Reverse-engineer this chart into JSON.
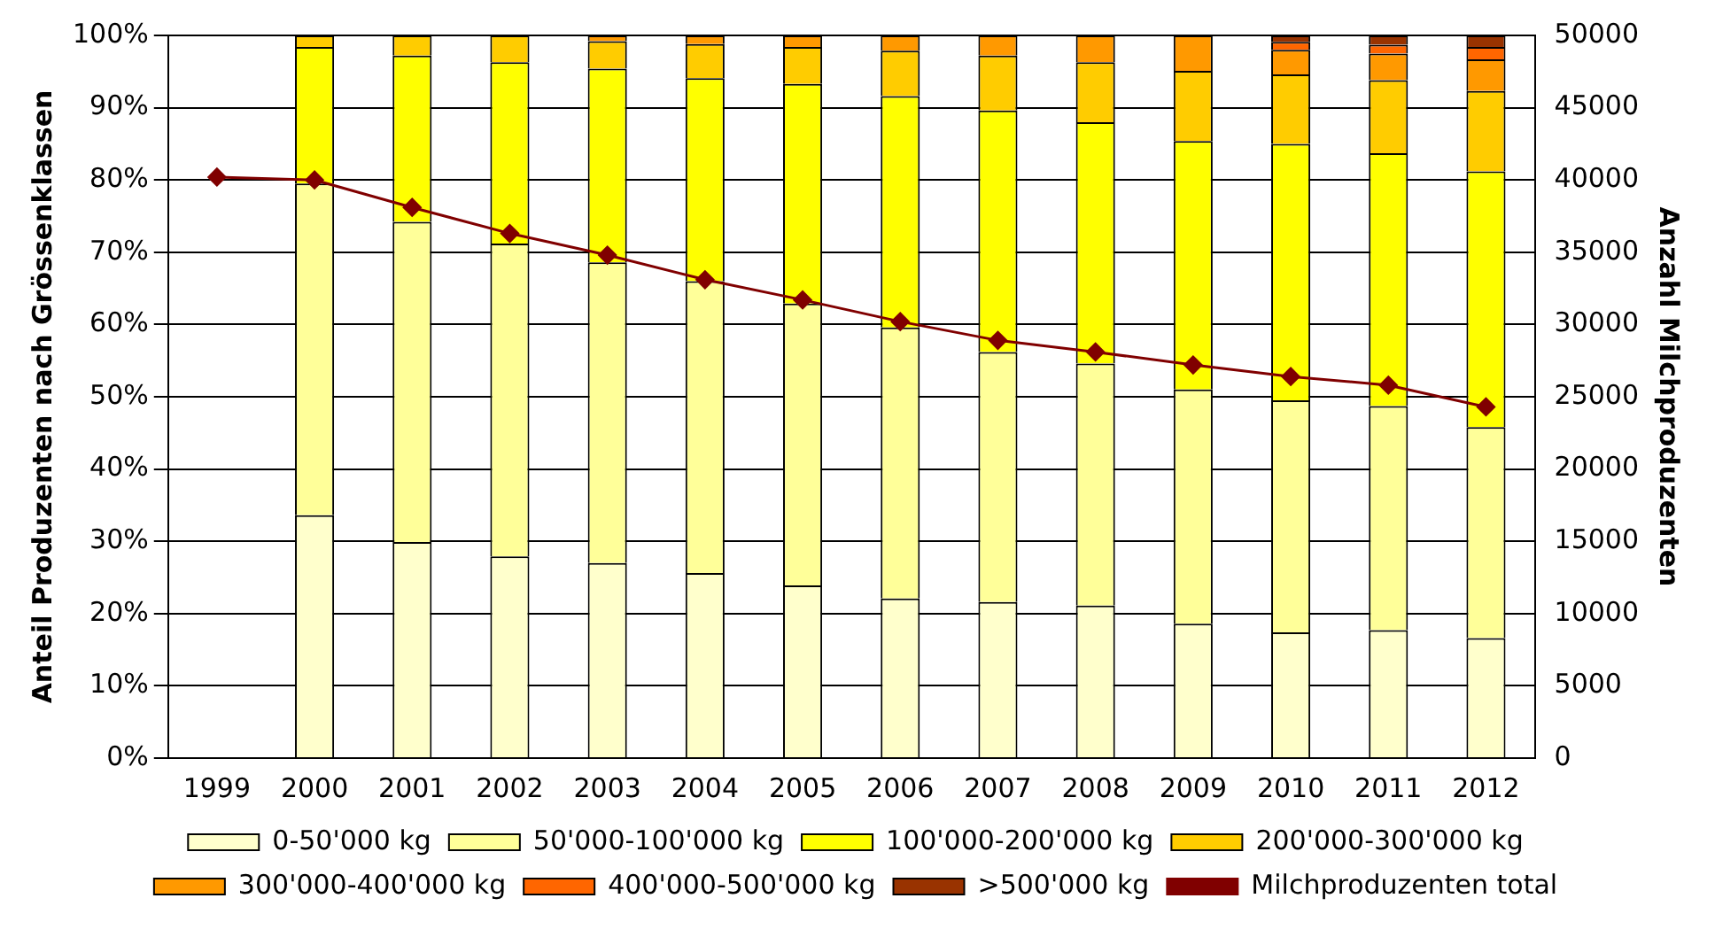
{
  "chart_data": {
    "type": "bar",
    "stacked": true,
    "categories": [
      "1999",
      "2000",
      "2001",
      "2002",
      "2003",
      "2004",
      "2005",
      "2006",
      "2007",
      "2008",
      "2009",
      "2010",
      "2011",
      "2012"
    ],
    "ylabel": "Anteil Produzenten nach Grössenklassen",
    "y2label": "Anzahl Milchproduzenten",
    "ylim": [
      0,
      100
    ],
    "yticks": [
      {
        "value": 0,
        "label": "0%"
      },
      {
        "value": 10,
        "label": "10%"
      },
      {
        "value": 20,
        "label": "20%"
      },
      {
        "value": 30,
        "label": "30%"
      },
      {
        "value": 40,
        "label": "40%"
      },
      {
        "value": 50,
        "label": "50%"
      },
      {
        "value": 60,
        "label": "60%"
      },
      {
        "value": 70,
        "label": "70%"
      },
      {
        "value": 80,
        "label": "80%"
      },
      {
        "value": 90,
        "label": "90%"
      },
      {
        "value": 100,
        "label": "100%"
      }
    ],
    "y2lim": [
      0,
      50000
    ],
    "y2ticks": [
      0,
      5000,
      10000,
      15000,
      20000,
      25000,
      30000,
      35000,
      40000,
      45000,
      50000
    ],
    "grid": "y",
    "legend": "bottom",
    "series": [
      {
        "name": "0-50'000 kg",
        "color": "#ffffcc",
        "values": [
          null,
          33.6,
          29.9,
          27.9,
          27.0,
          25.6,
          23.9,
          22.1,
          21.6,
          21.1,
          18.6,
          17.4,
          17.7,
          16.6
        ]
      },
      {
        "name": "50'000-100'000 kg",
        "color": "#ffff99",
        "values": [
          null,
          45.9,
          44.3,
          43.3,
          41.6,
          40.4,
          39.0,
          37.5,
          34.6,
          33.5,
          32.4,
          32.1,
          31.0,
          29.2
        ]
      },
      {
        "name": "100'000-200'000 kg",
        "color": "#ffff00",
        "values": [
          null,
          18.9,
          23.0,
          25.1,
          26.8,
          28.1,
          30.4,
          32.0,
          33.4,
          33.4,
          34.4,
          35.5,
          35.0,
          35.4
        ]
      },
      {
        "name": "200'000-300'000 kg",
        "color": "#ffcc00",
        "values": [
          null,
          1.6,
          2.8,
          3.7,
          3.8,
          4.7,
          5.1,
          6.3,
          7.6,
          8.3,
          9.7,
          9.6,
          10.1,
          11.1
        ]
      },
      {
        "name": "300'000-400'000 kg",
        "color": "#ff9900",
        "values": [
          null,
          0,
          null,
          null,
          0.8,
          1.2,
          1.6,
          2.1,
          2.8,
          3.7,
          4.9,
          3.4,
          3.7,
          4.4
        ]
      },
      {
        "name": "400'000-500'000 kg",
        "color": "#ff6600",
        "values": [
          null,
          0,
          0,
          0,
          0,
          0,
          0,
          0,
          0,
          0,
          0,
          1.1,
          1.2,
          1.7
        ]
      },
      {
        "name": ">500'000 kg",
        "color": "#993300",
        "values": [
          null,
          0,
          0,
          0,
          0,
          0,
          0,
          0,
          0,
          0,
          0,
          0.9,
          1.3,
          1.6
        ]
      },
      {
        "name": "Milchproduzenten total",
        "type": "line",
        "axis": "y2",
        "color": "#800000",
        "marker": "diamond",
        "line_style": "solid",
        "values": [
          40200,
          40000,
          38100,
          36300,
          34800,
          33100,
          31700,
          30200,
          28900,
          28100,
          27200,
          26400,
          25800,
          24300
        ]
      }
    ]
  }
}
